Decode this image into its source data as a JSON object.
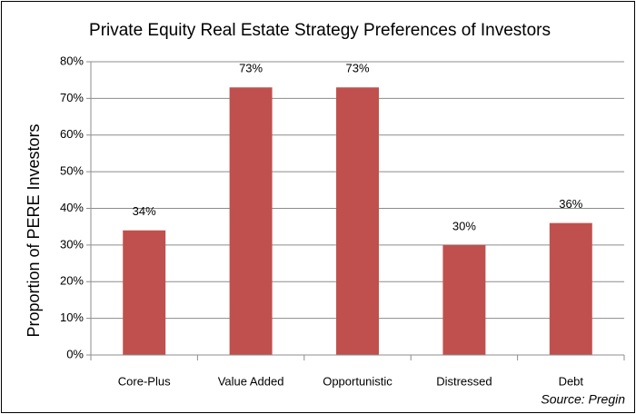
{
  "chart_data": {
    "type": "bar",
    "title": "Private Equity Real Estate Strategy Preferences of Investors",
    "ylabel": "Proportion of PERE Investors",
    "annotation": "Source: Pregin",
    "categories": [
      "Core-Plus",
      "Value Added",
      "Opportunistic",
      "Distressed",
      "Debt"
    ],
    "values": [
      34,
      73,
      73,
      30,
      36
    ],
    "value_labels": [
      "34%",
      "73%",
      "73%",
      "30%",
      "36%"
    ],
    "color": "#c0504d",
    "ylim": [
      0,
      80
    ],
    "yticks": [
      {
        "value": 0,
        "label": "0%"
      },
      {
        "value": 10,
        "label": "10%"
      },
      {
        "value": 20,
        "label": "20%"
      },
      {
        "value": 30,
        "label": "30%"
      },
      {
        "value": 40,
        "label": "40%"
      },
      {
        "value": 50,
        "label": "50%"
      },
      {
        "value": 60,
        "label": "60%"
      },
      {
        "value": 70,
        "label": "70%"
      },
      {
        "value": 80,
        "label": "80%"
      }
    ],
    "grid": true
  }
}
